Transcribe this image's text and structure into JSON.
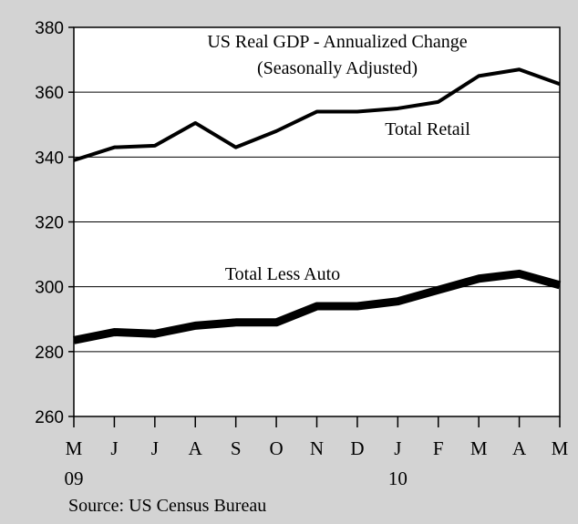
{
  "chart_data": {
    "type": "line",
    "title": "US Real GDP - Annualized Change",
    "subtitle": "(Seasonally Adjusted)",
    "source": "Source: US Census Bureau",
    "xlabel": "",
    "ylabel": "",
    "ylim": [
      260,
      380
    ],
    "yticks": [
      260,
      280,
      300,
      320,
      340,
      360,
      380
    ],
    "categories": [
      "M",
      "J",
      "J",
      "A",
      "S",
      "O",
      "N",
      "D",
      "J",
      "F",
      "M",
      "A",
      "M"
    ],
    "year_labels": [
      {
        "index": 0,
        "label": "09"
      },
      {
        "index": 8,
        "label": "10"
      }
    ],
    "grid": true,
    "series": [
      {
        "name": "Total Retail",
        "color": "#000000",
        "line_style": "thin",
        "values": [
          339,
          343,
          343.5,
          350.5,
          343,
          348,
          354,
          354,
          355,
          357,
          365,
          367,
          362.5
        ]
      },
      {
        "name": "Total Less Auto",
        "color": "#000000",
        "line_style": "thick",
        "values": [
          283.5,
          286,
          285.5,
          288,
          289,
          289,
          294,
          294,
          295.5,
          299,
          302.5,
          304,
          300.5
        ]
      }
    ]
  }
}
